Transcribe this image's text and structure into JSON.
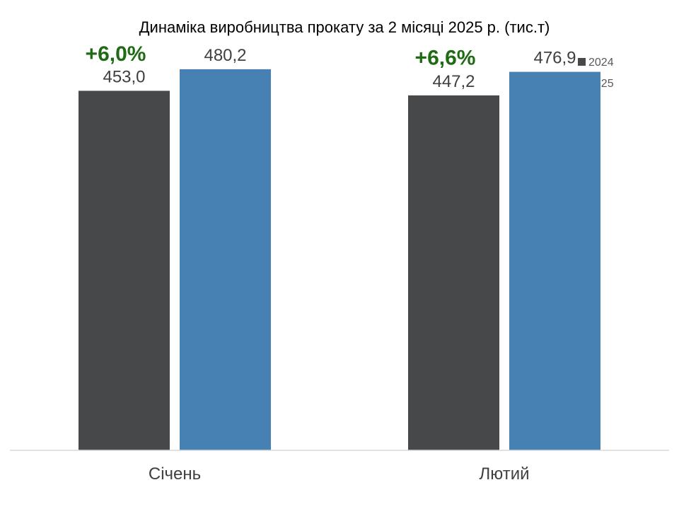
{
  "chart_data": {
    "type": "bar",
    "title": "Динаміка виробництва прокату за 2 місяці 2025 р. (тис.т)",
    "categories": [
      "Січень",
      "Лютий"
    ],
    "series": [
      {
        "name": "2024",
        "color": "#474849",
        "values": [
          453.0,
          447.2
        ],
        "labels": [
          "453,0",
          "447,2"
        ]
      },
      {
        "name": "2025",
        "color": "#4781b3",
        "values": [
          480.2,
          476.9
        ],
        "labels": [
          "480,2",
          "476,9"
        ]
      }
    ],
    "annotations": [
      {
        "category": "Січень",
        "text": "+6,0%",
        "color": "#1e6b14"
      },
      {
        "category": "Лютий",
        "text": "+6,6%",
        "color": "#1e6b14"
      }
    ],
    "xlabel": "",
    "ylabel": "",
    "ylim": [
      0,
      530
    ],
    "grid": false,
    "legend_position": "top-right",
    "axis_color": "#d9d9d9"
  }
}
